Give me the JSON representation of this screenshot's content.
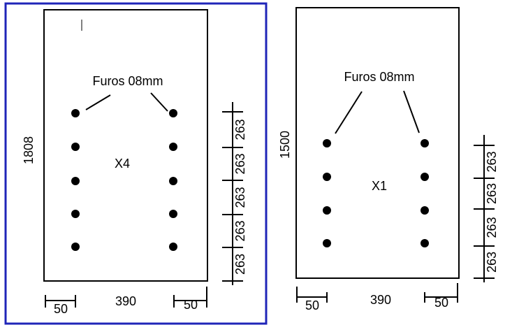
{
  "panels": [
    {
      "label": "Furos 08mm",
      "height": "1808",
      "quantity": "X4",
      "spacings": [
        "263",
        "263",
        "263",
        "263",
        "263"
      ],
      "edge_left": "50",
      "width": "390",
      "edge_right": "50"
    },
    {
      "label": "Furos 08mm",
      "height": "1500",
      "quantity": "X1",
      "spacings": [
        "263",
        "263",
        "263",
        "263"
      ],
      "edge_left": "50",
      "width": "390",
      "edge_right": "50"
    }
  ]
}
